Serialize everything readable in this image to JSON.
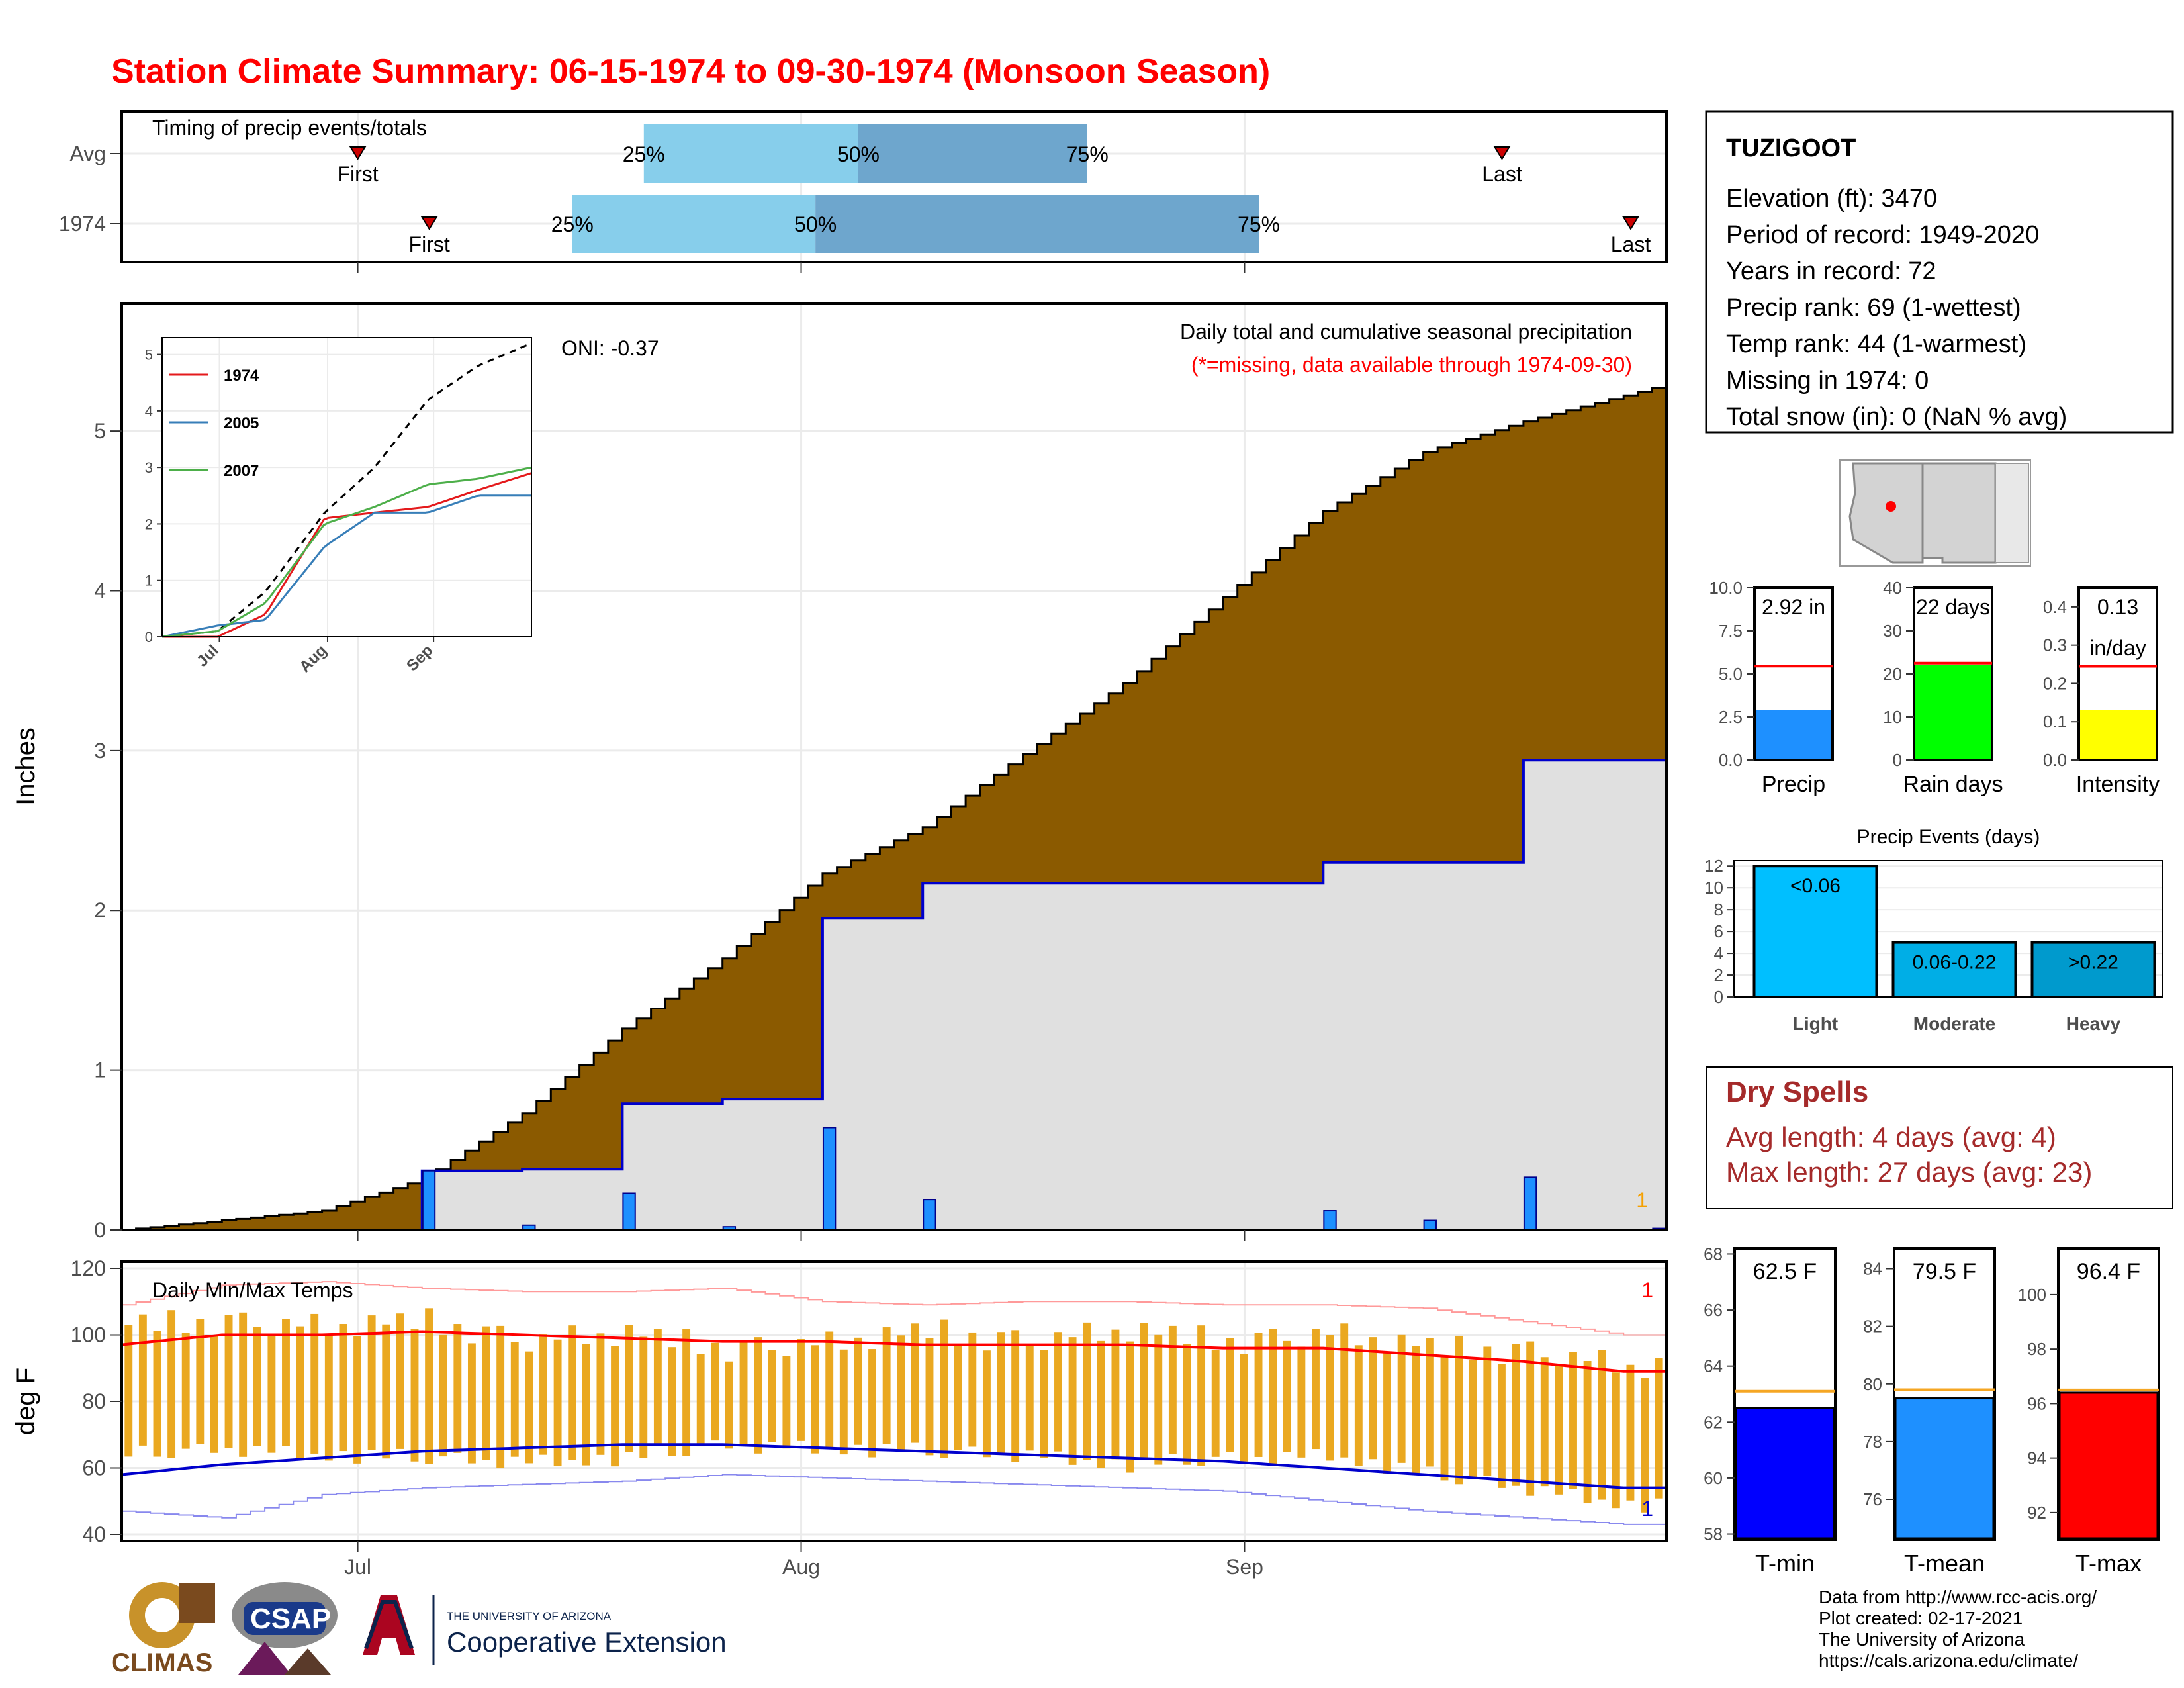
{
  "title": "Station Climate Summary: 06-15-1974 to 09-30-1974 (Monsoon Season)",
  "colors": {
    "title": "#ff0000",
    "cum_avg_fill": "#8b5a00",
    "cum_year_fill": "#e0e0e0",
    "cum_year_line": "#0000cc",
    "daily_bar": "#1e90ff",
    "temp_bar": "#eaa820",
    "tmax_line": "#ff0000",
    "tmin_line": "#0000cc",
    "timing_light": "#87ceeb",
    "timing_dark": "#6ea6cd",
    "dry_spell": "#a52a2a"
  },
  "timing": {
    "panel_label": "Timing of precip events/totals",
    "rows": [
      {
        "label": "Avg",
        "first": "First",
        "last": "Last",
        "p25": "25%",
        "p50": "50%",
        "p75": "75%"
      },
      {
        "label": "1974",
        "first": "First",
        "last": "Last",
        "p25": "25%",
        "p50": "50%",
        "p75": "75%"
      }
    ]
  },
  "precip_panel": {
    "y_axis_title": "Inches",
    "y_ticks": [
      "0",
      "1",
      "2",
      "3",
      "4",
      "5"
    ],
    "oni": "ONI: -0.37",
    "caption": "Daily total and cumulative seasonal precipitation",
    "missing_note": "(*=missing, data available through 1974-09-30)",
    "missing_count": "1"
  },
  "inset": {
    "y_ticks": [
      "0",
      "1",
      "2",
      "3",
      "4",
      "5"
    ],
    "x_ticks": [
      "Jul",
      "Aug",
      "Sep"
    ],
    "legend": [
      {
        "name": "1974",
        "color": "#e41a1c"
      },
      {
        "name": "2005",
        "color": "#377eb8"
      },
      {
        "name": "2007",
        "color": "#4daf4a"
      }
    ]
  },
  "temp_panel": {
    "label": "Daily Min/Max Temps",
    "y_axis_title": "deg F",
    "y_ticks": [
      "40",
      "60",
      "80",
      "100",
      "120"
    ],
    "x_ticks": [
      "Jul",
      "Aug",
      "Sep"
    ],
    "missing_top": "1",
    "missing_bottom": "1"
  },
  "station": {
    "name": "TUZIGOOT",
    "lines": [
      "Elevation (ft): 3470",
      "Period of record: 1949-2020",
      "Years in record: 72",
      "Precip rank: 69 (1-wettest)",
      "Temp rank: 44 (1-warmest)",
      "Missing in 1974: 0",
      "Total snow (in): 0 (NaN % avg)"
    ]
  },
  "mini_bars": [
    {
      "label": "Precip",
      "value_text": "2.92 in",
      "value_text2": "",
      "value": 2.92,
      "avg": 5.45,
      "ymax": 10.0,
      "ticks": [
        "0.0",
        "2.5",
        "5.0",
        "7.5",
        "10.0"
      ],
      "color": "#1e90ff"
    },
    {
      "label": "Rain days",
      "value_text": "22 days",
      "value_text2": "",
      "value": 22,
      "avg": 22.5,
      "ymax": 40,
      "ticks": [
        "0",
        "10",
        "20",
        "30",
        "40"
      ],
      "color": "#00ff00"
    },
    {
      "label": "Intensity",
      "value_text": "0.13",
      "value_text2": "in/day",
      "value": 0.13,
      "avg": 0.245,
      "ymax": 0.45,
      "ticks": [
        "0.0",
        "0.1",
        "0.2",
        "0.3",
        "0.4"
      ],
      "color": "#ffff00"
    }
  ],
  "events": {
    "title": "Precip Events (days)",
    "y_ticks": [
      "0",
      "2",
      "4",
      "6",
      "8",
      "10",
      "12"
    ],
    "bars": [
      {
        "category": "Light",
        "label": "<0.06",
        "value": 12,
        "color": "#00bfff"
      },
      {
        "category": "Moderate",
        "label": "0.06-0.22",
        "value": 5,
        "color": "#00aee6"
      },
      {
        "category": "Heavy",
        "label": ">0.22",
        "value": 5,
        "color": "#009acd"
      }
    ]
  },
  "dry_spells": {
    "title": "Dry Spells",
    "avg_line": "Avg length: 4 days (avg: 4)",
    "max_line": "Max length: 27 days (avg: 23)"
  },
  "temp_bars": [
    {
      "label": "T-min",
      "value_text": "62.5 F",
      "value": 62.5,
      "avg": 63.1,
      "ymin": 57.8,
      "ymax": 68.2,
      "ticks": [
        "58",
        "60",
        "62",
        "64",
        "66",
        "68"
      ],
      "color": "#0000ff"
    },
    {
      "label": "T-mean",
      "value_text": "79.5 F",
      "value": 79.5,
      "avg": 79.8,
      "ymin": 74.6,
      "ymax": 84.7,
      "ticks": [
        "76",
        "78",
        "80",
        "82",
        "84"
      ],
      "color": "#1e90ff"
    },
    {
      "label": "T-max",
      "value_text": "96.4 F",
      "value": 96.4,
      "avg": 96.5,
      "ymin": 91.0,
      "ymax": 101.7,
      "ticks": [
        "92",
        "94",
        "96",
        "98",
        "100"
      ],
      "color": "#ff0000"
    }
  ],
  "credits": [
    "Data from http://www.rcc-acis.org/",
    "Plot created: 02-17-2021",
    "The University of Arizona",
    "https://cals.arizona.edu/climate/"
  ],
  "logos": {
    "climas": "CLIMAS",
    "csap": "CSAP",
    "ua_top": "THE UNIVERSITY OF ARIZONA",
    "ua_bottom": "Cooperative Extension"
  },
  "chart_data": [
    {
      "type": "line",
      "title": "Timing of precip events/totals",
      "series": [
        {
          "name": "Avg",
          "values": [
            {
              "first": "1974-07-01",
              "p25": "1974-07-21",
              "p50": "1974-08-05",
              "p75": "1974-08-21",
              "last": "1974-09-19"
            }
          ]
        },
        {
          "name": "1974",
          "values": [
            {
              "first": "1974-07-06",
              "p25": "1974-07-16",
              "p50": "1974-08-02",
              "p75": "1974-09-02",
              "last": "1974-09-28"
            }
          ]
        }
      ]
    },
    {
      "type": "area",
      "title": "Daily total and cumulative seasonal precipitation",
      "ylabel": "Inches",
      "ylim": [
        0,
        5.8
      ],
      "x": [
        "1974-06-15",
        "1974-06-22",
        "1974-06-29",
        "1974-07-06",
        "1974-07-13",
        "1974-07-20",
        "1974-07-27",
        "1974-08-03",
        "1974-08-10",
        "1974-08-17",
        "1974-08-24",
        "1974-08-31",
        "1974-09-07",
        "1974-09-14",
        "1974-09-21",
        "1974-09-30"
      ],
      "series": [
        {
          "name": "Average cumulative",
          "values": [
            0.0,
            0.06,
            0.12,
            0.32,
            0.73,
            1.26,
            1.7,
            2.23,
            2.52,
            2.98,
            3.42,
            3.96,
            4.5,
            4.87,
            5.06,
            5.27
          ]
        },
        {
          "name": "1974 cumulative",
          "values": [
            0.0,
            0.0,
            0.0,
            0.37,
            0.38,
            0.79,
            0.82,
            1.95,
            2.17,
            2.17,
            2.17,
            2.17,
            2.3,
            2.3,
            2.94,
            2.94
          ]
        },
        {
          "name": "1974 daily",
          "values": [
            0.0,
            0.0,
            0.0,
            0.37,
            0.03,
            0.23,
            0.02,
            0.64,
            0.19,
            0.0,
            0.0,
            0.0,
            0.12,
            0.06,
            0.33,
            0.01
          ]
        }
      ]
    },
    {
      "type": "line",
      "title": "",
      "x": [
        "Jun 15",
        "Jul 1",
        "Jul 15",
        "Aug 1",
        "Aug 15",
        "Sep 1",
        "Sep 15",
        "Sep 30"
      ],
      "ylim": [
        0,
        5.3
      ],
      "series": [
        {
          "name": "",
          "values": [
            0.0,
            0.1,
            0.8,
            2.2,
            3.0,
            4.2,
            4.8,
            5.2
          ]
        },
        {
          "name": "1974",
          "values": [
            0.0,
            0.0,
            0.4,
            2.1,
            2.2,
            2.3,
            2.6,
            2.9
          ]
        },
        {
          "name": "2005",
          "values": [
            0.0,
            0.2,
            0.3,
            1.6,
            2.2,
            2.2,
            2.5,
            2.5
          ]
        },
        {
          "name": "2007",
          "values": [
            0.0,
            0.1,
            0.6,
            2.0,
            2.3,
            2.7,
            2.8,
            3.0
          ]
        }
      ]
    },
    {
      "type": "bar",
      "title": "Daily Min/Max Temps",
      "ylabel": "deg F",
      "ylim": [
        38,
        122
      ],
      "x": [
        "1974-06-15",
        "1974-06-22",
        "1974-06-29",
        "1974-07-06",
        "1974-07-13",
        "1974-07-20",
        "1974-07-27",
        "1974-08-03",
        "1974-08-10",
        "1974-08-17",
        "1974-08-24",
        "1974-08-31",
        "1974-09-07",
        "1974-09-14",
        "1974-09-21",
        "1974-09-28"
      ],
      "series": [
        {
          "name": "1974 max",
          "values": [
            103,
            104,
            102,
            104,
            98,
            100,
            96,
            97,
            101,
            98,
            101,
            98,
            100,
            96,
            95,
            90
          ]
        },
        {
          "name": "1974 min",
          "values": [
            64,
            66,
            64,
            63,
            62,
            63,
            67,
            66,
            65,
            64,
            61,
            63,
            64,
            58,
            54,
            49
          ]
        },
        {
          "name": "Normal max",
          "values": [
            97,
            100,
            100,
            101,
            100,
            99,
            98,
            98,
            97,
            97,
            97,
            96,
            96,
            94,
            92,
            89
          ]
        },
        {
          "name": "Normal min",
          "values": [
            58,
            61,
            63,
            65,
            66,
            67,
            67,
            66,
            65,
            64,
            63,
            62,
            60,
            58,
            56,
            54
          ]
        },
        {
          "name": "Record max",
          "values": [
            109,
            115,
            116,
            114,
            113,
            113,
            114,
            110,
            109,
            110,
            110,
            109,
            109,
            108,
            104,
            100
          ]
        },
        {
          "name": "Record min",
          "values": [
            47,
            45,
            52,
            54,
            55,
            56,
            58,
            57,
            56,
            55,
            54,
            53,
            50,
            47,
            45,
            43
          ]
        }
      ]
    }
  ]
}
